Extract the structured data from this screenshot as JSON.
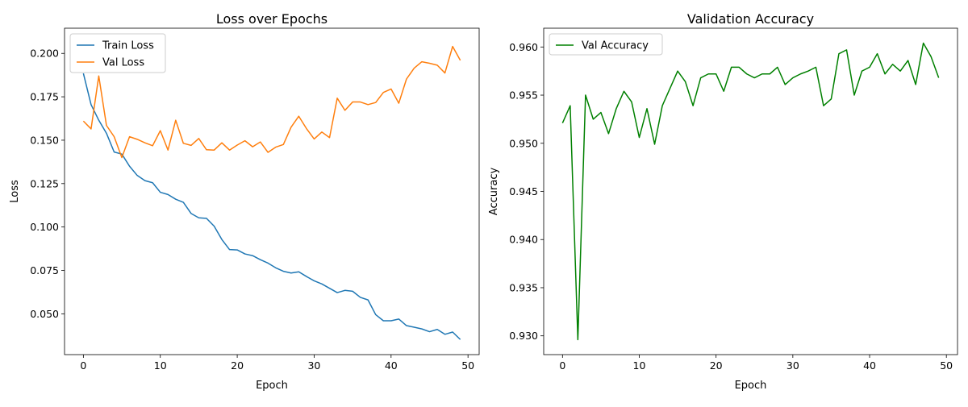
{
  "chart_data": [
    {
      "type": "line",
      "title": "Loss over Epochs",
      "xlabel": "Epoch",
      "ylabel": "Loss",
      "xlim": [
        -2.45,
        51.45
      ],
      "ylim": [
        0.0265,
        0.2145
      ],
      "xticks": [
        0,
        10,
        20,
        30,
        40,
        50
      ],
      "yticks": [
        0.05,
        0.075,
        0.1,
        0.125,
        0.15,
        0.175,
        0.2
      ],
      "ytick_labels": [
        "0.050",
        "0.075",
        "0.100",
        "0.125",
        "0.150",
        "0.175",
        "0.200"
      ],
      "legend": "upper-left",
      "x": [
        0,
        1,
        2,
        3,
        4,
        5,
        6,
        7,
        8,
        9,
        10,
        11,
        12,
        13,
        14,
        15,
        16,
        17,
        18,
        19,
        20,
        21,
        22,
        23,
        24,
        25,
        26,
        27,
        28,
        29,
        30,
        31,
        32,
        33,
        34,
        35,
        36,
        37,
        38,
        39,
        40,
        41,
        42,
        43,
        44,
        45,
        46,
        47,
        48,
        49
      ],
      "series": [
        {
          "name": "Train Loss",
          "color": "#1f77b4",
          "values": [
            0.1885,
            0.1705,
            0.1615,
            0.154,
            0.1432,
            0.142,
            0.135,
            0.1297,
            0.1267,
            0.1255,
            0.12,
            0.1187,
            0.116,
            0.1142,
            0.1078,
            0.1053,
            0.105,
            0.1005,
            0.0928,
            0.087,
            0.0868,
            0.0845,
            0.0835,
            0.0812,
            0.0792,
            0.0765,
            0.0745,
            0.0735,
            0.0742,
            0.0715,
            0.069,
            0.0672,
            0.0647,
            0.0622,
            0.0635,
            0.063,
            0.0595,
            0.058,
            0.0495,
            0.046,
            0.046,
            0.047,
            0.0432,
            0.0423,
            0.0413,
            0.0397,
            0.041,
            0.0382,
            0.0395,
            0.0352
          ]
        },
        {
          "name": "Val Loss",
          "color": "#ff7f0e",
          "values": [
            0.161,
            0.1565,
            0.187,
            0.1585,
            0.152,
            0.14,
            0.152,
            0.1505,
            0.1485,
            0.1468,
            0.1555,
            0.1443,
            0.1615,
            0.1482,
            0.147,
            0.151,
            0.1445,
            0.1443,
            0.1485,
            0.1443,
            0.1472,
            0.1497,
            0.1462,
            0.149,
            0.143,
            0.146,
            0.1475,
            0.1575,
            0.1638,
            0.1567,
            0.1507,
            0.1547,
            0.1515,
            0.1742,
            0.1672,
            0.172,
            0.172,
            0.1705,
            0.1717,
            0.1775,
            0.1795,
            0.1713,
            0.1852,
            0.1915,
            0.1952,
            0.1943,
            0.1932,
            0.1887,
            0.204,
            0.196
          ]
        }
      ]
    },
    {
      "type": "line",
      "title": "Validation Accuracy",
      "xlabel": "Epoch",
      "ylabel": "Accuracy",
      "xlim": [
        -2.45,
        51.45
      ],
      "ylim": [
        0.92805,
        0.96195
      ],
      "xticks": [
        0,
        10,
        20,
        30,
        40,
        50
      ],
      "yticks": [
        0.93,
        0.935,
        0.94,
        0.945,
        0.95,
        0.955,
        0.96
      ],
      "ytick_labels": [
        "0.930",
        "0.935",
        "0.940",
        "0.945",
        "0.950",
        "0.955",
        "0.960"
      ],
      "legend": "upper-left",
      "x": [
        0,
        1,
        2,
        3,
        4,
        5,
        6,
        7,
        8,
        9,
        10,
        11,
        12,
        13,
        14,
        15,
        16,
        17,
        18,
        19,
        20,
        21,
        22,
        23,
        24,
        25,
        26,
        27,
        28,
        29,
        30,
        31,
        32,
        33,
        34,
        35,
        36,
        37,
        38,
        39,
        40,
        41,
        42,
        43,
        44,
        45,
        46,
        47,
        48,
        49
      ],
      "series": [
        {
          "name": "Val Accuracy",
          "color": "#008000",
          "values": [
            0.9521,
            0.9539,
            0.9296,
            0.955,
            0.9525,
            0.9532,
            0.951,
            0.9536,
            0.9554,
            0.9543,
            0.9506,
            0.9536,
            0.9499,
            0.9539,
            0.9557,
            0.9575,
            0.9564,
            0.9539,
            0.9568,
            0.9572,
            0.9572,
            0.9554,
            0.9579,
            0.9579,
            0.9572,
            0.9568,
            0.9572,
            0.9572,
            0.9579,
            0.9561,
            0.9568,
            0.9572,
            0.9575,
            0.9579,
            0.9539,
            0.9546,
            0.9593,
            0.9597,
            0.955,
            0.9575,
            0.9579,
            0.9593,
            0.9572,
            0.9582,
            0.9575,
            0.9586,
            0.9561,
            0.9604,
            0.959,
            0.9568
          ]
        }
      ]
    }
  ]
}
